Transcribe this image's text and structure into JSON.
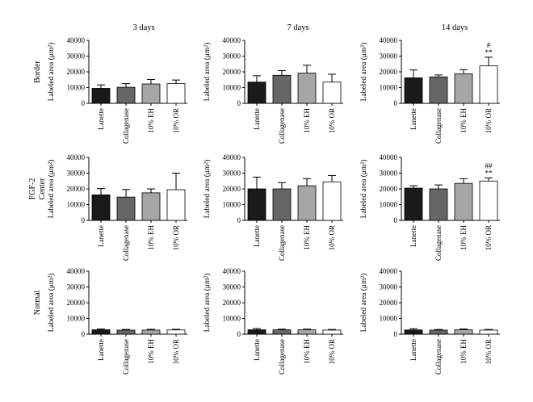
{
  "figure": {
    "columns": [
      "3 days",
      "7 days",
      "14 days"
    ],
    "rows": [
      "Border",
      "FGF-2\nCenter",
      "Normal"
    ]
  },
  "colors": {
    "bar_fills": [
      "#1a1a1a",
      "#666666",
      "#a6a6a6",
      "#ffffff"
    ],
    "stroke": "#000000"
  },
  "chart_data": [
    {
      "type": "bar",
      "row": "Border",
      "column": "3 days",
      "ylabel": "Labeled area (μm²)",
      "ylim": [
        0,
        40000
      ],
      "yticks": [
        0,
        10000,
        20000,
        30000,
        40000
      ],
      "categories": [
        "Lanette",
        "Collagenase",
        "10% EH",
        "10% OR"
      ],
      "values": [
        9500,
        10200,
        12300,
        12500
      ],
      "errors": [
        2200,
        2300,
        2800,
        2300
      ],
      "annotations": [
        "",
        "",
        "",
        ""
      ]
    },
    {
      "type": "bar",
      "row": "Border",
      "column": "7 days",
      "ylabel": "Labeled area (μm²)",
      "ylim": [
        0,
        40000
      ],
      "yticks": [
        0,
        10000,
        20000,
        30000,
        40000
      ],
      "categories": [
        "Lanette",
        "Collagenase",
        "10% EH",
        "10% OR"
      ],
      "values": [
        13500,
        17800,
        19200,
        13500
      ],
      "errors": [
        4000,
        3000,
        5000,
        5000
      ],
      "annotations": [
        "",
        "",
        "",
        ""
      ]
    },
    {
      "type": "bar",
      "row": "Border",
      "column": "14 days",
      "ylabel": "Labeled area (μm²)",
      "ylim": [
        0,
        40000
      ],
      "yticks": [
        0,
        10000,
        20000,
        30000,
        40000
      ],
      "categories": [
        "Lanette",
        "Collagenase",
        "10% EH",
        "10% OR"
      ],
      "values": [
        16200,
        16800,
        18800,
        23800
      ],
      "errors": [
        5000,
        1200,
        2600,
        5500
      ],
      "annotations": [
        "",
        "",
        "",
        "#\n**"
      ]
    },
    {
      "type": "bar",
      "row": "FGF-2 Center",
      "column": "3 days",
      "ylabel": "Labeled area (μm²)",
      "ylim": [
        0,
        40000
      ],
      "yticks": [
        0,
        10000,
        20000,
        30000,
        40000
      ],
      "categories": [
        "Lanette",
        "Collagenase",
        "10% EH",
        "10% OR"
      ],
      "values": [
        16200,
        14800,
        17500,
        19500
      ],
      "errors": [
        4000,
        4800,
        2500,
        10500
      ],
      "annotations": [
        "",
        "",
        "",
        ""
      ]
    },
    {
      "type": "bar",
      "row": "FGF-2 Center",
      "column": "7 days",
      "ylabel": "Labeled area (μm²)",
      "ylim": [
        0,
        40000
      ],
      "yticks": [
        0,
        10000,
        20000,
        30000,
        40000
      ],
      "categories": [
        "Lanette",
        "Collagenase",
        "10% EH",
        "10% OR"
      ],
      "values": [
        20000,
        20000,
        22000,
        24500
      ],
      "errors": [
        7500,
        4000,
        4500,
        4000
      ],
      "annotations": [
        "",
        "",
        "",
        ""
      ]
    },
    {
      "type": "bar",
      "row": "FGF-2 Center",
      "column": "14 days",
      "ylabel": "Labeled area (μm²)",
      "ylim": [
        0,
        40000
      ],
      "yticks": [
        0,
        10000,
        20000,
        30000,
        40000
      ],
      "categories": [
        "Lanette",
        "Collagenase",
        "10% EH",
        "10% OR"
      ],
      "values": [
        20500,
        20000,
        23500,
        25000
      ],
      "errors": [
        1500,
        2500,
        3000,
        2000
      ],
      "annotations": [
        "",
        "",
        "",
        "##\n**"
      ]
    },
    {
      "type": "bar",
      "row": "Normal",
      "column": "3 days",
      "ylabel": "Labeled area (μm²)",
      "ylim": [
        0,
        40000
      ],
      "yticks": [
        0,
        10000,
        20000,
        30000,
        40000
      ],
      "categories": [
        "Lanette",
        "Collagenase",
        "10% EH",
        "10% OR"
      ],
      "values": [
        2800,
        2600,
        2600,
        2700
      ],
      "errors": [
        500,
        400,
        500,
        400
      ],
      "annotations": [
        "",
        "",
        "",
        ""
      ]
    },
    {
      "type": "bar",
      "row": "Normal",
      "column": "7 days",
      "ylabel": "Labeled area (μm²)",
      "ylim": [
        0,
        40000
      ],
      "yticks": [
        0,
        10000,
        20000,
        30000,
        40000
      ],
      "categories": [
        "Lanette",
        "Collagenase",
        "10% EH",
        "10% OR"
      ],
      "values": [
        2800,
        2800,
        2800,
        2600
      ],
      "errors": [
        800,
        400,
        400,
        400
      ],
      "annotations": [
        "",
        "",
        "",
        ""
      ]
    },
    {
      "type": "bar",
      "row": "Normal",
      "column": "14 days",
      "ylabel": "Labeled area (μm²)",
      "ylim": [
        0,
        40000
      ],
      "yticks": [
        0,
        10000,
        20000,
        30000,
        40000
      ],
      "categories": [
        "Lanette",
        "Collagenase",
        "10% EH",
        "10% OR"
      ],
      "values": [
        2700,
        2600,
        2800,
        2600
      ],
      "errors": [
        800,
        400,
        500,
        400
      ],
      "annotations": [
        "",
        "",
        "",
        ""
      ]
    }
  ]
}
